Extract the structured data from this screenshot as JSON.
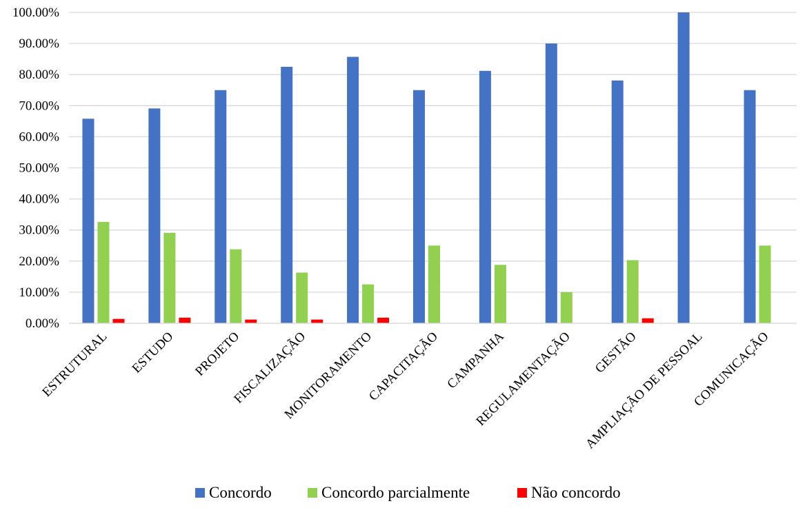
{
  "chart_data": {
    "type": "bar",
    "categories": [
      "ESTRUTURAL",
      "ESTUDO",
      "PROJETO",
      "FISCALIZAÇÃO",
      "MONITORAMENTO",
      "CAPACITAÇÃO",
      "CAMPANHA",
      "REGULAMENTAÇÃO",
      "GESTÃO",
      "AMPLIAÇÃO DE PESSOAL",
      "COMUNICAÇÃO"
    ],
    "series": [
      {
        "name": "Concordo",
        "color": "#4472C4",
        "values": [
          65.8,
          69.1,
          75.0,
          82.5,
          85.7,
          75.0,
          81.2,
          90.0,
          78.1,
          100.0,
          75.0
        ]
      },
      {
        "name": "Concordo parcialmente",
        "color": "#92D050",
        "values": [
          32.6,
          29.1,
          23.8,
          16.3,
          12.5,
          25.0,
          18.8,
          10.0,
          20.3,
          0.0,
          25.0
        ]
      },
      {
        "name": "Não concordo",
        "color": "#FF0000",
        "values": [
          1.4,
          1.8,
          1.2,
          1.2,
          1.8,
          0.0,
          0.0,
          0.0,
          1.6,
          0.0,
          0.0
        ]
      }
    ],
    "yticks": [
      "0.00%",
      "10.00%",
      "20.00%",
      "30.00%",
      "40.00%",
      "50.00%",
      "60.00%",
      "70.00%",
      "80.00%",
      "90.00%",
      "100.00%"
    ],
    "ylim": [
      0,
      100
    ],
    "grid": true,
    "legend_position": "bottom"
  }
}
